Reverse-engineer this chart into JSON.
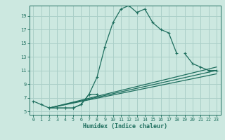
{
  "xlabel": "Humidex (Indice chaleur)",
  "bg_color": "#cce8e0",
  "grid_color": "#aacfc8",
  "line_color": "#1e6e5e",
  "xlim": [
    -0.5,
    23.5
  ],
  "ylim": [
    4.5,
    20.5
  ],
  "xticks": [
    0,
    1,
    2,
    3,
    4,
    5,
    6,
    7,
    8,
    9,
    10,
    11,
    12,
    13,
    14,
    15,
    16,
    17,
    18,
    19,
    20,
    21,
    22,
    23
  ],
  "yticks": [
    5,
    7,
    9,
    11,
    13,
    15,
    17,
    19
  ],
  "curve1_x": [
    0,
    1,
    2,
    3,
    4,
    5,
    6,
    7,
    8,
    9,
    10,
    11,
    12,
    13,
    14,
    15,
    16,
    17,
    18
  ],
  "curve1_y": [
    6.5,
    6.0,
    5.5,
    5.5,
    5.5,
    5.5,
    6.0,
    7.5,
    10.0,
    14.5,
    18.0,
    20.0,
    20.5,
    19.5,
    20.0,
    18.0,
    17.0,
    16.5,
    13.5
  ],
  "curve2_x": [
    2,
    3,
    4,
    5,
    6,
    7,
    8,
    19,
    20,
    21,
    22,
    23
  ],
  "curve2_y": [
    5.5,
    5.5,
    5.5,
    5.5,
    6.0,
    7.5,
    7.5,
    13.5,
    12.0,
    11.5,
    11.0,
    11.0
  ],
  "lines": [
    {
      "x": [
        2,
        23
      ],
      "y": [
        5.5,
        11.5
      ]
    },
    {
      "x": [
        2,
        23
      ],
      "y": [
        5.5,
        11.0
      ]
    },
    {
      "x": [
        2,
        23
      ],
      "y": [
        5.5,
        10.5
      ]
    }
  ]
}
